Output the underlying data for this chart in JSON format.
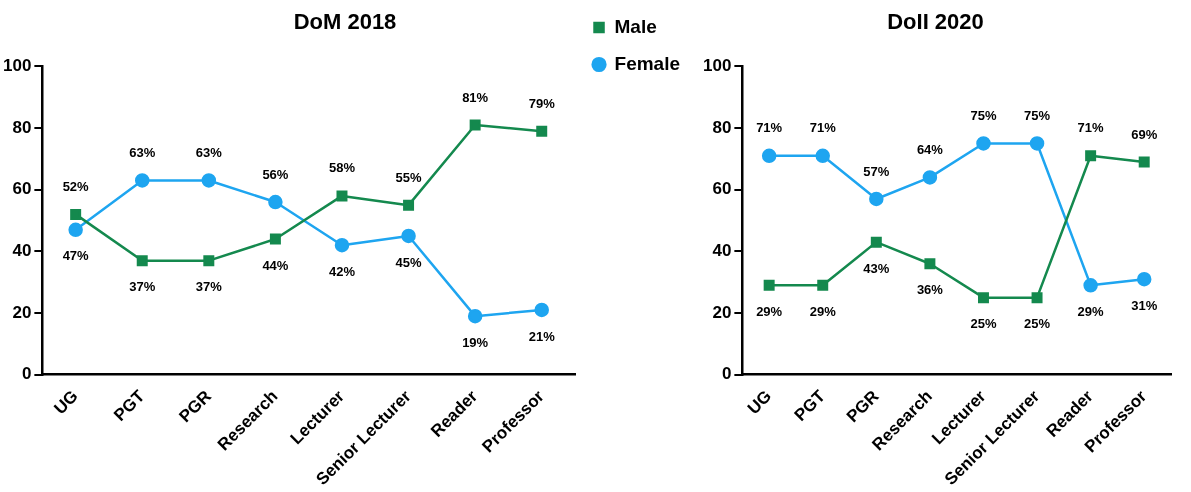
{
  "chart_data": [
    {
      "type": "line",
      "title": "DoM 2018",
      "categories": [
        "UG",
        "PGT",
        "PGR",
        "Research",
        "Lecturer",
        "Senior Lecturer",
        "Reader",
        "Professor"
      ],
      "ylim": [
        0,
        100
      ],
      "yticks": [
        0,
        20,
        40,
        60,
        80,
        100
      ],
      "grid": false,
      "legend": "right",
      "series": [
        {
          "name": "Male",
          "color": "#14894e",
          "marker": "square",
          "values": [
            52,
            37,
            37,
            44,
            58,
            55,
            81,
            79
          ],
          "value_labels": [
            "52%",
            "37%",
            "37%",
            "44%",
            "58%",
            "55%",
            "81%",
            "79%"
          ]
        },
        {
          "name": "Female",
          "color": "#1ea5f0",
          "marker": "circle",
          "values": [
            47,
            63,
            63,
            56,
            42,
            45,
            19,
            21
          ],
          "value_labels": [
            "47%",
            "63%",
            "63%",
            "56%",
            "42%",
            "45%",
            "19%",
            "21%"
          ]
        }
      ]
    },
    {
      "type": "line",
      "title": "DoII 2020",
      "categories": [
        "UG",
        "PGT",
        "PGR",
        "Research",
        "Lecturer",
        "Senior Lecturer",
        "Reader",
        "Professor"
      ],
      "ylim": [
        0,
        100
      ],
      "yticks": [
        0,
        20,
        40,
        60,
        80,
        100
      ],
      "grid": false,
      "legend": false,
      "series": [
        {
          "color": "#14894e",
          "marker": "square",
          "values": [
            29,
            29,
            43,
            36,
            25,
            25,
            71,
            69
          ],
          "value_labels": [
            "29%",
            "29%",
            "43%",
            "36%",
            "25%",
            "25%",
            "71%",
            "69%"
          ]
        },
        {
          "color": "#1ea5f0",
          "marker": "circle",
          "values": [
            71,
            71,
            57,
            64,
            75,
            75,
            29,
            31
          ],
          "value_labels": [
            "71%",
            "71%",
            "57%",
            "64%",
            "75%",
            "75%",
            "29%",
            "31%"
          ]
        }
      ]
    }
  ]
}
